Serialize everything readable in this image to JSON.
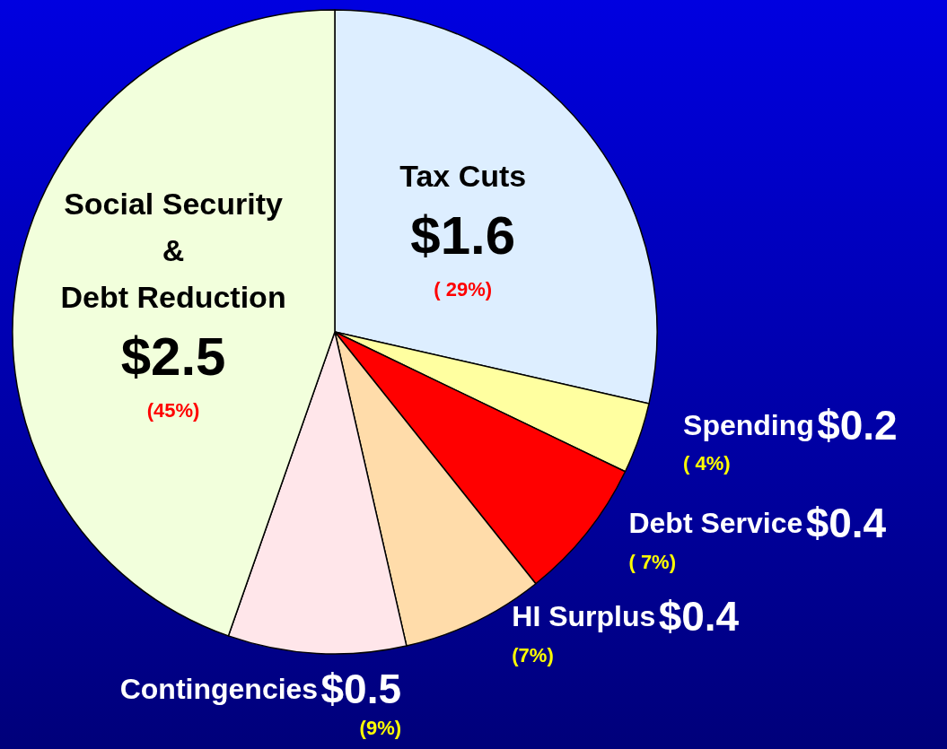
{
  "chart_data": {
    "type": "pie",
    "categories": [
      "Tax Cuts",
      "Spending",
      "Debt Service",
      "HI Surplus",
      "Contingencies",
      "Social Security\n&\nDebt Reduction"
    ],
    "values": [
      1.6,
      0.2,
      0.4,
      0.4,
      0.5,
      2.5
    ],
    "value_labels": [
      "$1.6",
      "$0.2",
      "$0.4",
      "$0.4",
      "$0.5",
      "$2.5"
    ],
    "colors": [
      "#ddeeff",
      "#ffffa0",
      "#ff0000",
      "#ffdcaa",
      "#ffe6ea",
      "#f2ffdc"
    ],
    "annotations": [
      "( 29%)",
      "( 4%)",
      "( 7%)",
      "(7%)",
      "(9%)",
      "(45%)"
    ],
    "legend": false
  }
}
